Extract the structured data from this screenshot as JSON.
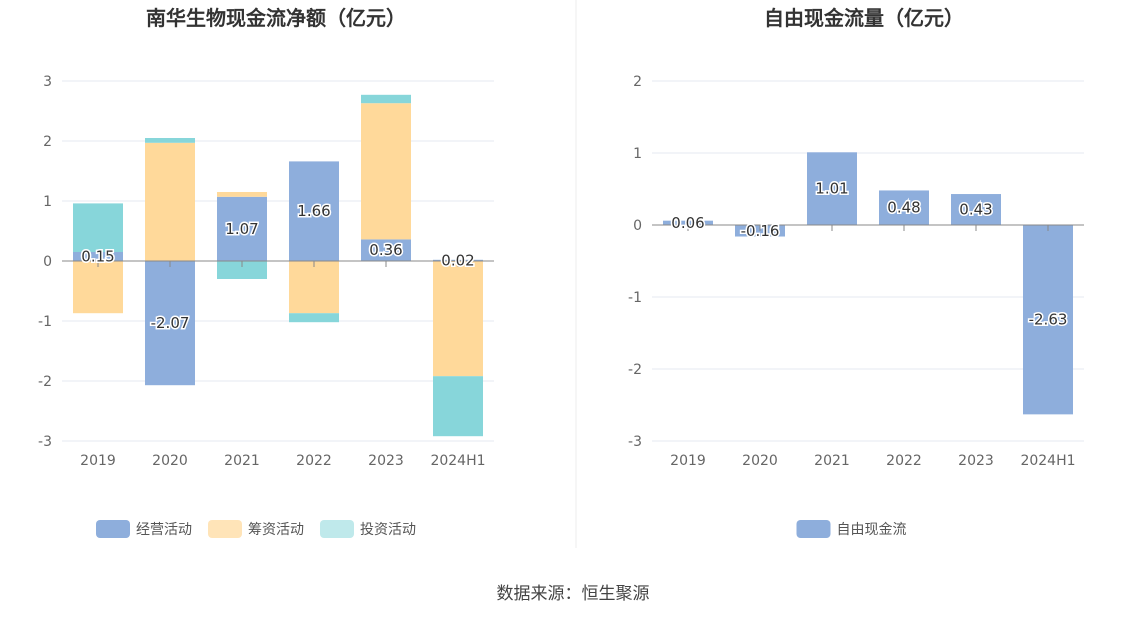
{
  "source": "数据来源：恒生聚源",
  "chart_data": [
    {
      "type": "bar",
      "stacked": true,
      "title": "南华生物现金流净额（亿元）",
      "categories": [
        "2019",
        "2020",
        "2021",
        "2022",
        "2023",
        "2024H1"
      ],
      "ylim": [
        -3,
        3
      ],
      "yticks": [
        "3",
        "2",
        "1",
        "0",
        "-1",
        "-2",
        "-3"
      ],
      "grid": true,
      "legend_position": "bottom",
      "series": [
        {
          "name": "经营活动",
          "color": "#8eaedc",
          "values": [
            0.15,
            -2.07,
            1.07,
            1.66,
            0.36,
            0.02
          ],
          "labels": [
            "0.15",
            "-2.07",
            "1.07",
            "1.66",
            "0.36",
            "0.02"
          ]
        },
        {
          "name": "筹资活动",
          "color": "#ffd99a",
          "values": [
            -0.87,
            1.97,
            0.08,
            -0.87,
            2.27,
            -1.92
          ]
        },
        {
          "name": "投资活动",
          "color": "#87d6da",
          "values": [
            0.81,
            0.08,
            -0.3,
            -0.15,
            0.14,
            -1.0
          ]
        }
      ]
    },
    {
      "type": "bar",
      "title": "自由现金流量（亿元）",
      "categories": [
        "2019",
        "2020",
        "2021",
        "2022",
        "2023",
        "2024H1"
      ],
      "ylim": [
        -3,
        2
      ],
      "yticks": [
        "2",
        "1",
        "0",
        "-1",
        "-2",
        "-3"
      ],
      "grid": true,
      "legend_position": "bottom",
      "series": [
        {
          "name": "自由现金流",
          "color": "#8eaedc",
          "values": [
            0.06,
            -0.16,
            1.01,
            0.48,
            0.43,
            -2.63
          ],
          "labels": [
            "0.06",
            "-0.16",
            "1.01",
            "0.48",
            "0.43",
            "-2.63"
          ]
        }
      ]
    }
  ]
}
